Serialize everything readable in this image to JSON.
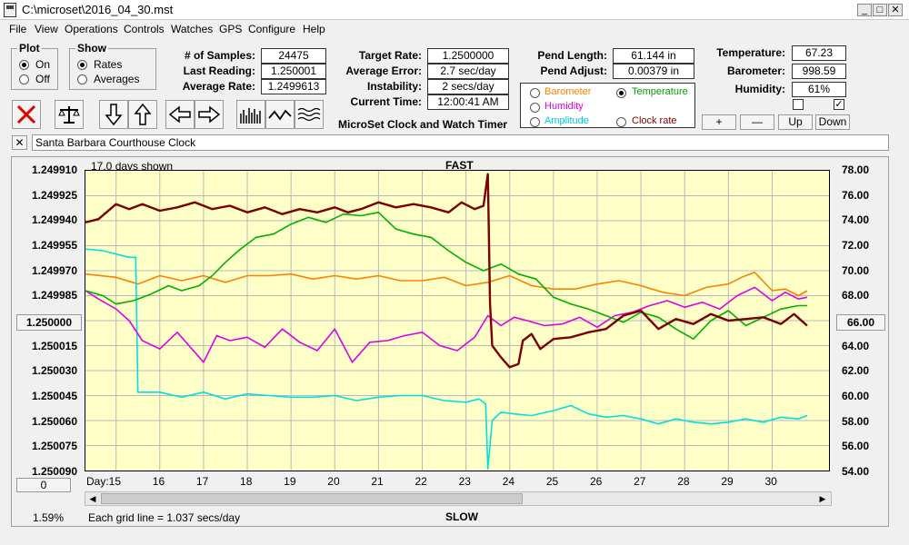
{
  "window": {
    "title": "C:\\microset\\2016_04_30.mst",
    "min": "_",
    "max": "□",
    "close": "✕"
  },
  "menu": [
    "File",
    "View",
    "Operations",
    "Controls",
    "Watches",
    "GPS",
    "Configure",
    "Help"
  ],
  "plot_group": {
    "title": "Plot",
    "on": "On",
    "off": "Off",
    "selected": "On"
  },
  "show_group": {
    "title": "Show",
    "rates": "Rates",
    "averages": "Averages",
    "selected": "Rates"
  },
  "stats": {
    "samples_label": "# of Samples:",
    "samples": "24475",
    "last_label": "Last Reading:",
    "last": "1.250001",
    "avg_label": "Average Rate:",
    "avg": "1.2499613",
    "target_label": "Target Rate:",
    "target": "1.2500000",
    "error_label": "Average Error:",
    "error": "2.7 sec/day",
    "instab_label": "Instability:",
    "instab": "2 secs/day",
    "time_label": "Current Time:",
    "time": "12:00:41 AM",
    "pendlen_label": "Pend Length:",
    "pendlen": "61.144 in",
    "pendadj_label": "Pend Adjust:",
    "pendadj": "0.00379 in",
    "temp_label": "Temperature:",
    "temp": "67.23",
    "baro_label": "Barometer:",
    "baro": "998.59",
    "hum_label": "Humidity:",
    "hum": "61%"
  },
  "app_subtitle": "MicroSet Clock and Watch Timer",
  "series_select": {
    "barometer": "Barometer",
    "temperature": "Temperature",
    "humidity": "Humidity",
    "amplitude": "Amplitude",
    "clockrate": "Clock rate",
    "selected": "Temperature"
  },
  "scale_buttons": {
    "plus": "+",
    "minus": "—",
    "up": "Up",
    "down": "Down"
  },
  "clock_name": "Santa Barbara Courthouse Clock",
  "chart_header": {
    "days_shown": "17.0 days shown",
    "fast": "FAST",
    "slow": "SLOW"
  },
  "left_value_button": "1.250000",
  "right_value_button": "66.00",
  "zero_button": "0",
  "footer": {
    "percent": "1.59%",
    "grid_note": "Each grid line = 1.037 secs/day"
  },
  "colors": {
    "plot_bg": "#ffffc8",
    "rate": "#7a0000",
    "barometer": "#ff8000",
    "temperature": "#00b000",
    "humidity": "#e000e0",
    "amplitude": "#00e0e0"
  },
  "chart_data": {
    "type": "line",
    "x_label": "Day:",
    "x_ticks": [
      15,
      16,
      17,
      18,
      19,
      20,
      21,
      22,
      23,
      24,
      25,
      26,
      27,
      28,
      29,
      30
    ],
    "x_range": [
      14.3,
      31.3
    ],
    "y_left_ticks": [
      "1.249910",
      "1.249925",
      "1.249940",
      "1.249955",
      "1.249970",
      "1.249985",
      "1.250000",
      "1.250015",
      "1.250030",
      "1.250045",
      "1.250060",
      "1.250075",
      "1.250090"
    ],
    "y_left_range": [
      1.24991,
      1.25009
    ],
    "y_right_ticks": [
      "78.00",
      "76.00",
      "74.00",
      "72.00",
      "70.00",
      "68.00",
      "66.00",
      "64.00",
      "62.00",
      "60.00",
      "58.00",
      "56.00",
      "54.00"
    ],
    "y_right_range": [
      54,
      78
    ],
    "grid": true,
    "series": [
      {
        "key": "rate",
        "axis": "left",
        "color": "#7a0000",
        "x": [
          14.3,
          14.6,
          15.0,
          15.3,
          15.6,
          16.0,
          16.4,
          16.8,
          17.2,
          17.6,
          18.0,
          18.4,
          18.8,
          19.2,
          19.6,
          20.0,
          20.3,
          20.6,
          21.0,
          21.4,
          21.8,
          22.2,
          22.6,
          22.9,
          23.2,
          23.4,
          23.5,
          23.55,
          23.6,
          23.8,
          24.0,
          24.2,
          24.3,
          24.5,
          24.7,
          25.0,
          25.4,
          25.8,
          26.2,
          26.6,
          27.0,
          27.4,
          27.8,
          28.2,
          28.6,
          29.0,
          29.4,
          29.8,
          30.2,
          30.5,
          30.8
        ],
        "y": [
          1.249941,
          1.249939,
          1.24993,
          1.249933,
          1.24993,
          1.249934,
          1.249932,
          1.249929,
          1.249933,
          1.249931,
          1.249935,
          1.249932,
          1.249936,
          1.249933,
          1.249935,
          1.249932,
          1.249935,
          1.249933,
          1.249929,
          1.249932,
          1.24993,
          1.249932,
          1.249935,
          1.249929,
          1.249933,
          1.249931,
          1.249912,
          1.24999,
          1.250015,
          1.250022,
          1.250028,
          1.250026,
          1.250012,
          1.250008,
          1.250017,
          1.250011,
          1.25001,
          1.250007,
          1.250005,
          1.249997,
          1.249994,
          1.250005,
          1.249999,
          1.250002,
          1.249996,
          1.25,
          1.249999,
          1.249998,
          1.250002,
          1.249996,
          1.250003
        ]
      },
      {
        "key": "barometer",
        "axis": "left",
        "color": "#ff8000",
        "x": [
          14.3,
          15.0,
          15.5,
          16.0,
          16.5,
          17.0,
          17.5,
          18.0,
          18.5,
          19.0,
          19.5,
          20.0,
          20.5,
          21.0,
          21.5,
          22.0,
          22.5,
          23.0,
          23.5,
          24.0,
          24.5,
          25.0,
          25.5,
          26.0,
          26.5,
          27.0,
          27.5,
          28.0,
          28.5,
          29.0,
          29.3,
          29.6,
          30.0,
          30.3,
          30.6,
          30.8
        ],
        "y": [
          1.249972,
          1.249974,
          1.249978,
          1.249973,
          1.249976,
          1.249973,
          1.249977,
          1.249973,
          1.249973,
          1.249972,
          1.249975,
          1.249973,
          1.249975,
          1.249973,
          1.249976,
          1.249976,
          1.249974,
          1.249979,
          1.249977,
          1.249973,
          1.249979,
          1.249981,
          1.249981,
          1.249978,
          1.249976,
          1.249979,
          1.249983,
          1.249985,
          1.24998,
          1.249978,
          1.249974,
          1.249971,
          1.249982,
          1.249981,
          1.249985,
          1.249982
        ]
      },
      {
        "key": "temperature",
        "axis": "left",
        "color": "#00b000",
        "x": [
          14.3,
          14.7,
          15.0,
          15.4,
          15.8,
          16.2,
          16.5,
          16.9,
          17.2,
          17.5,
          17.8,
          18.2,
          18.6,
          19.0,
          19.4,
          19.8,
          20.2,
          20.6,
          21.0,
          21.4,
          21.8,
          22.2,
          22.6,
          23.0,
          23.4,
          23.8,
          24.2,
          24.6,
          25.0,
          25.4,
          25.8,
          26.2,
          26.6,
          27.0,
          27.4,
          27.8,
          28.2,
          28.6,
          29.0,
          29.4,
          29.8,
          30.2,
          30.6,
          30.8
        ],
        "y": [
          1.249982,
          1.249985,
          1.24999,
          1.249988,
          1.249984,
          1.249979,
          1.249982,
          1.249979,
          1.249973,
          1.249965,
          1.249958,
          1.24995,
          1.249948,
          1.249942,
          1.249938,
          1.249941,
          1.249936,
          1.249937,
          1.249935,
          1.249945,
          1.249948,
          1.24995,
          1.249958,
          1.249965,
          1.24997,
          1.249966,
          1.249972,
          1.249975,
          1.249986,
          1.24999,
          1.249993,
          1.249997,
          1.250001,
          1.249995,
          1.249998,
          1.250005,
          1.250011,
          1.25,
          1.249994,
          1.250003,
          1.249998,
          1.249993,
          1.249991,
          1.249991
        ]
      },
      {
        "key": "humidity",
        "axis": "left",
        "color": "#e000e0",
        "x": [
          14.3,
          14.6,
          15.0,
          15.3,
          15.6,
          16.0,
          16.4,
          16.8,
          17.0,
          17.3,
          17.6,
          18.0,
          18.4,
          18.8,
          19.2,
          19.6,
          20.0,
          20.4,
          20.8,
          21.2,
          21.6,
          22.0,
          22.4,
          22.8,
          23.2,
          23.5,
          23.8,
          24.1,
          24.4,
          24.8,
          25.2,
          25.6,
          26.0,
          26.4,
          26.8,
          27.2,
          27.6,
          28.0,
          28.4,
          28.8,
          29.2,
          29.6,
          30.0,
          30.3,
          30.6,
          30.8
        ],
        "y": [
          1.249982,
          1.249987,
          1.249993,
          1.25,
          1.250012,
          1.250017,
          1.250007,
          1.250019,
          1.250025,
          1.250009,
          1.250012,
          1.25001,
          1.250016,
          1.250005,
          1.250013,
          1.250018,
          1.250005,
          1.250025,
          1.250013,
          1.250012,
          1.250009,
          1.250007,
          1.250015,
          1.250018,
          1.25001,
          1.249997,
          1.250003,
          1.249998,
          1.25,
          1.250003,
          1.250002,
          1.249998,
          1.250004,
          1.249997,
          1.249995,
          1.249991,
          1.249988,
          1.249992,
          1.249989,
          1.249993,
          1.249985,
          1.24998,
          1.249988,
          1.249983,
          1.249987,
          1.249986
        ]
      },
      {
        "key": "amplitude",
        "axis": "left",
        "color": "#00e0e0",
        "x": [
          14.3,
          14.7,
          15.0,
          15.3,
          15.45,
          15.5,
          15.6,
          16.0,
          16.5,
          17.0,
          17.5,
          18.0,
          18.5,
          19.0,
          19.5,
          20.0,
          20.5,
          21.0,
          21.5,
          22.0,
          22.5,
          23.0,
          23.3,
          23.45,
          23.5,
          23.6,
          23.8,
          24.1,
          24.5,
          25.0,
          25.4,
          25.8,
          26.2,
          26.6,
          27.0,
          27.4,
          27.8,
          28.2,
          28.6,
          29.0,
          29.4,
          29.8,
          30.2,
          30.6,
          30.8
        ],
        "y": [
          1.249957,
          1.249958,
          1.24996,
          1.249962,
          1.249962,
          1.250043,
          1.250043,
          1.250043,
          1.250046,
          1.250043,
          1.250047,
          1.250044,
          1.250045,
          1.250046,
          1.250046,
          1.250045,
          1.250048,
          1.250046,
          1.250045,
          1.250045,
          1.250048,
          1.250049,
          1.250047,
          1.25005,
          1.250089,
          1.25006,
          1.250055,
          1.250056,
          1.250057,
          1.250054,
          1.250051,
          1.250056,
          1.250058,
          1.250057,
          1.250059,
          1.250062,
          1.250059,
          1.250061,
          1.250062,
          1.250061,
          1.250059,
          1.250061,
          1.250058,
          1.250059,
          1.250057
        ]
      }
    ]
  }
}
